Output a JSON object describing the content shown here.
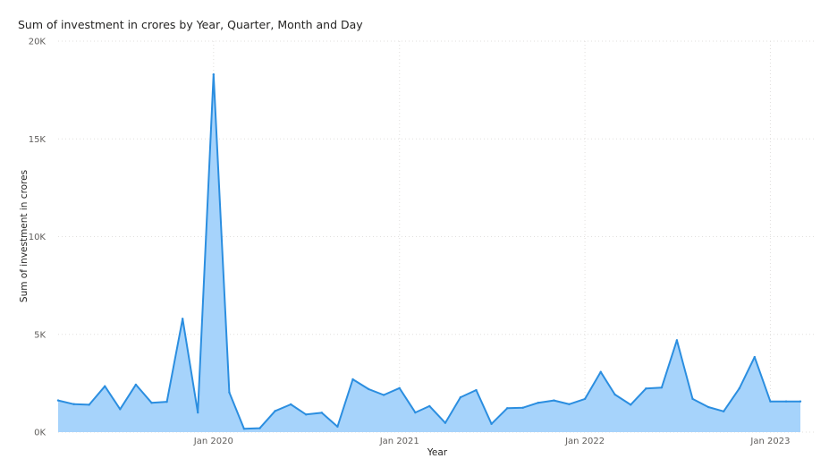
{
  "chart_data": {
    "type": "area",
    "title": "Sum of investment in crores by Year, Quarter, Month and Day",
    "xlabel": "Year",
    "ylabel": "Sum of investment in crores",
    "ylim": [
      0,
      20000
    ],
    "yticks": [
      {
        "value": 0,
        "label": "0K"
      },
      {
        "value": 5000,
        "label": "5K"
      },
      {
        "value": 10000,
        "label": "10K"
      },
      {
        "value": 15000,
        "label": "15K"
      },
      {
        "value": 20000,
        "label": "20K"
      }
    ],
    "xlim": [
      "2019-03-01",
      "2023-03-31"
    ],
    "xticks": [
      {
        "value": "2020-01-01",
        "label": "Jan 2020"
      },
      {
        "value": "2021-01-01",
        "label": "Jan 2021"
      },
      {
        "value": "2022-01-01",
        "label": "Jan 2022"
      },
      {
        "value": "2023-01-01",
        "label": "Jan 2023"
      }
    ],
    "grid": true,
    "colors": {
      "line": "#2b8ee0",
      "fill": "#a6d3fb"
    },
    "series": [
      {
        "x": [
          "2019-03-01",
          "2019-04-01",
          "2019-05-01",
          "2019-06-01",
          "2019-07-01",
          "2019-08-01",
          "2019-09-01",
          "2019-10-01",
          "2019-11-01",
          "2019-12-01",
          "2020-01-01",
          "2020-02-01",
          "2020-03-01",
          "2020-04-01",
          "2020-05-01",
          "2020-06-01",
          "2020-07-01",
          "2020-08-01",
          "2020-09-01",
          "2020-10-01",
          "2020-11-01",
          "2020-12-01",
          "2021-01-01",
          "2021-02-01",
          "2021-03-01",
          "2021-04-01",
          "2021-05-01",
          "2021-06-01",
          "2021-07-01",
          "2021-08-01",
          "2021-09-01",
          "2021-10-01",
          "2021-11-01",
          "2021-12-01",
          "2022-01-01",
          "2022-02-01",
          "2022-03-01",
          "2022-04-01",
          "2022-05-01",
          "2022-06-01",
          "2022-07-01",
          "2022-08-01",
          "2022-09-01",
          "2022-10-01",
          "2022-11-01",
          "2022-12-01",
          "2023-01-01",
          "2023-02-01",
          "2023-03-01"
        ],
        "values": [
          1620,
          1430,
          1400,
          2350,
          1170,
          2430,
          1500,
          1550,
          5800,
          1000,
          18300,
          2030,
          170,
          200,
          1080,
          1420,
          900,
          990,
          280,
          2700,
          2200,
          1900,
          2250,
          1000,
          1330,
          470,
          1780,
          2150,
          420,
          1220,
          1250,
          1500,
          1620,
          1430,
          1700,
          3080,
          1920,
          1400,
          2230,
          2280,
          4700,
          1700,
          1280,
          1060,
          2240,
          3840,
          1570,
          1570,
          1570
        ]
      }
    ]
  }
}
